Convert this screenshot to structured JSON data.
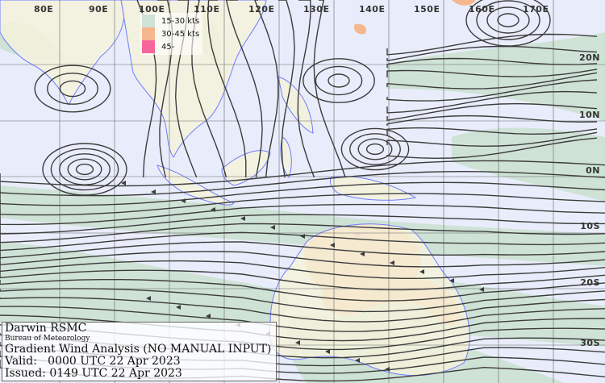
{
  "map": {
    "longitude_labels": [
      "80E",
      "90E",
      "100E",
      "110E",
      "120E",
      "130E",
      "140E",
      "150E",
      "160E",
      "170E"
    ],
    "latitude_labels": [
      "20N",
      "10N",
      "0N",
      "10S",
      "20S",
      "30S"
    ],
    "colors": {
      "ocean": "#e9edfb",
      "land": "#f4f2dc",
      "wind_15_30": "#cfe2d6",
      "wind_30_45": "#f6b78e",
      "wind_45_plus": "#f7669a",
      "coastline": "#6f7cff",
      "streamline": "#3c3c3c",
      "grid": "#666666"
    }
  },
  "legend": {
    "items": [
      {
        "label": "15-30 kts",
        "color": "#cfe2d6"
      },
      {
        "label": "30-45 kts",
        "color": "#f6b78e"
      },
      {
        "label": "45-",
        "color": "#f7669a"
      }
    ]
  },
  "info": {
    "centre": "Darwin RSMC",
    "agency": "Bureau of Meteorology",
    "product": "Gradient Wind Analysis (NO MANUAL INPUT)",
    "valid": "Valid:   0000 UTC 22 Apr 2023",
    "issued": "Issued: 0149 UTC 22 Apr 2023"
  }
}
